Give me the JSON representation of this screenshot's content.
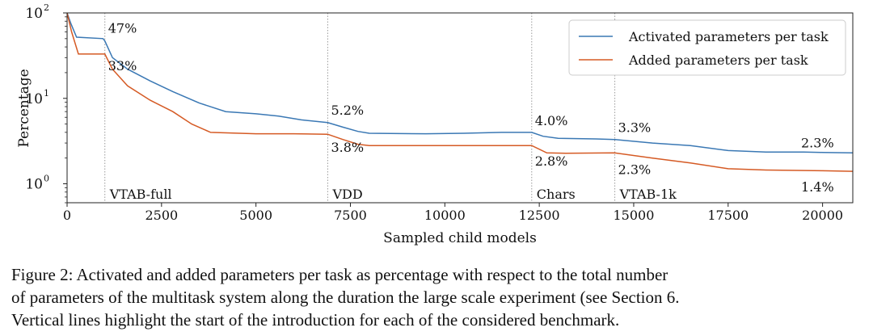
{
  "chart_data": {
    "type": "line",
    "xlabel": "Sampled child models",
    "ylabel": "Percentage",
    "xlim": [
      0,
      20800
    ],
    "ylim": [
      0.6,
      100
    ],
    "yscale": "log",
    "grid": false,
    "legend_position": "top-right",
    "x_ticks": [
      "0",
      "2500",
      "5000",
      "7500",
      "10000",
      "12500",
      "15000",
      "17500",
      "20000"
    ],
    "y_ticks": [
      {
        "base": "10",
        "exp": "2"
      },
      {
        "base": "10",
        "exp": "1"
      },
      {
        "base": "10",
        "exp": "0"
      }
    ],
    "series": [
      {
        "name": "Activated parameters per task",
        "color": "#3a78b4",
        "points": [
          [
            0,
            100
          ],
          [
            100,
            75
          ],
          [
            250,
            52
          ],
          [
            950,
            50
          ],
          [
            1000,
            47
          ],
          [
            1200,
            30
          ],
          [
            1600,
            22
          ],
          [
            2200,
            16
          ],
          [
            2800,
            12
          ],
          [
            3500,
            8.8
          ],
          [
            4200,
            7.0
          ],
          [
            5000,
            6.6
          ],
          [
            5600,
            6.2
          ],
          [
            6200,
            5.6
          ],
          [
            6900,
            5.2
          ],
          [
            7300,
            4.6
          ],
          [
            7700,
            4.1
          ],
          [
            8000,
            3.9
          ],
          [
            9500,
            3.85
          ],
          [
            10500,
            3.9
          ],
          [
            11500,
            4.0
          ],
          [
            12300,
            4.0
          ],
          [
            12600,
            3.6
          ],
          [
            13000,
            3.4
          ],
          [
            14000,
            3.35
          ],
          [
            14500,
            3.3
          ],
          [
            15500,
            3.0
          ],
          [
            16500,
            2.8
          ],
          [
            17500,
            2.45
          ],
          [
            18500,
            2.35
          ],
          [
            19500,
            2.35
          ],
          [
            20000,
            2.33
          ],
          [
            20800,
            2.3
          ]
        ]
      },
      {
        "name": "Added parameters per task",
        "color": "#d55a24",
        "points": [
          [
            0,
            100
          ],
          [
            120,
            60
          ],
          [
            300,
            33
          ],
          [
            950,
            33
          ],
          [
            1000,
            33
          ],
          [
            1200,
            22
          ],
          [
            1600,
            14
          ],
          [
            2200,
            9.5
          ],
          [
            2800,
            7.0
          ],
          [
            3300,
            5.0
          ],
          [
            3800,
            4.0
          ],
          [
            5000,
            3.85
          ],
          [
            6000,
            3.85
          ],
          [
            6900,
            3.8
          ],
          [
            7300,
            3.3
          ],
          [
            7700,
            2.9
          ],
          [
            8000,
            2.8
          ],
          [
            12300,
            2.8
          ],
          [
            12700,
            2.3
          ],
          [
            13200,
            2.28
          ],
          [
            14500,
            2.3
          ],
          [
            15500,
            2.0
          ],
          [
            16500,
            1.75
          ],
          [
            17500,
            1.5
          ],
          [
            18500,
            1.45
          ],
          [
            20000,
            1.42
          ],
          [
            20800,
            1.4
          ]
        ]
      }
    ],
    "benchmarks": [
      {
        "label": "VTAB-full",
        "x": 1000
      },
      {
        "label": "VDD",
        "x": 6900
      },
      {
        "label": "Chars",
        "x": 12300
      },
      {
        "label": "VTAB-1k",
        "x": 14500
      }
    ],
    "annotations": [
      {
        "text": "47%",
        "x": 1000,
        "y": 47
      },
      {
        "text": "33%",
        "x": 1000,
        "y": 33
      },
      {
        "text": "5.2%",
        "x": 6900,
        "y": 5.2
      },
      {
        "text": "3.8%",
        "x": 6900,
        "y": 3.8
      },
      {
        "text": "4.0%",
        "x": 12300,
        "y": 4.0
      },
      {
        "text": "2.8%",
        "x": 12300,
        "y": 2.8
      },
      {
        "text": "3.3%",
        "x": 14500,
        "y": 3.3
      },
      {
        "text": "2.3%",
        "x": 14500,
        "y": 2.3
      },
      {
        "text": "2.3%",
        "x": 20800,
        "y": 2.3
      },
      {
        "text": "1.4%",
        "x": 20800,
        "y": 1.4
      }
    ]
  },
  "caption": {
    "line1": "Figure 2: Activated and added parameters per task as percentage with respect to the total number",
    "line2": "of parameters of the multitask system along the duration the large scale experiment (see Section 6.",
    "line3": "Vertical lines highlight the start of the introduction for each of the considered benchmark."
  }
}
